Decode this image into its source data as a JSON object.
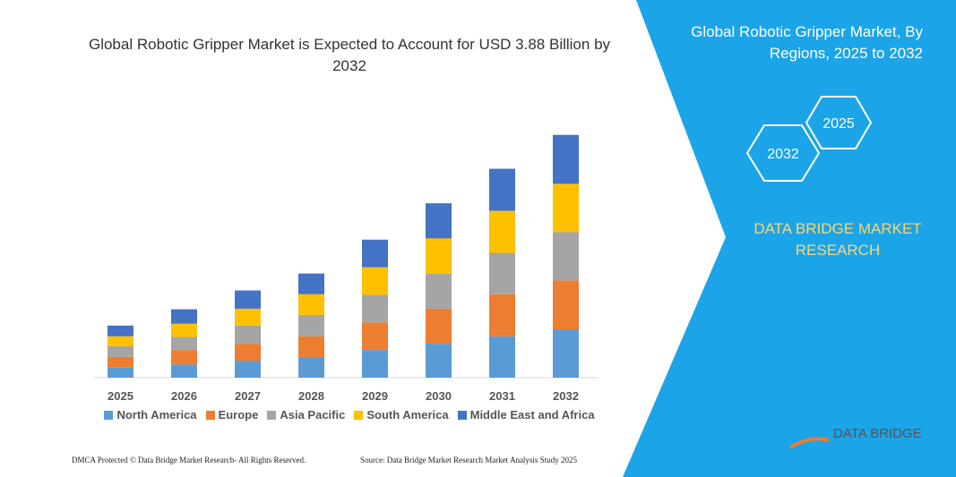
{
  "chart_data": {
    "type": "bar",
    "stacked": true,
    "title": "Global Robotic Gripper Market is Expected to Account for USD 3.88 Billion by 2032",
    "categories": [
      "2025",
      "2026",
      "2027",
      "2028",
      "2029",
      "2030",
      "2031",
      "2032"
    ],
    "series": [
      {
        "name": "North America",
        "color": "#5b9bd5",
        "values": [
          0.16,
          0.21,
          0.27,
          0.33,
          0.44,
          0.54,
          0.66,
          0.77
        ]
      },
      {
        "name": "Europe",
        "color": "#ed7d31",
        "values": [
          0.17,
          0.23,
          0.27,
          0.33,
          0.44,
          0.56,
          0.67,
          0.78
        ]
      },
      {
        "name": "Asia Pacific",
        "color": "#a5a5a5",
        "values": [
          0.17,
          0.21,
          0.29,
          0.34,
          0.44,
          0.56,
          0.66,
          0.77
        ]
      },
      {
        "name": "South America",
        "color": "#ffc000",
        "values": [
          0.16,
          0.21,
          0.27,
          0.33,
          0.44,
          0.56,
          0.67,
          0.77
        ]
      },
      {
        "name": "Middle East and Africa",
        "color": "#4472c4",
        "values": [
          0.17,
          0.23,
          0.29,
          0.33,
          0.44,
          0.56,
          0.67,
          0.78
        ]
      }
    ]
  },
  "panel": {
    "title": "Global Robotic Gripper Market, By Regions, 2025 to 2032",
    "hexagons": [
      "2025",
      "2032"
    ],
    "brand": "DATA BRIDGE MARKET RESEARCH"
  },
  "logo": {
    "text": "DATA BRIDGE"
  },
  "footer": {
    "left": "DMCA Protected © Data Bridge Market Research-  All Rights Reserved.",
    "right": "Source: Data Bridge Market Research  Market Analysis Study 2025"
  }
}
